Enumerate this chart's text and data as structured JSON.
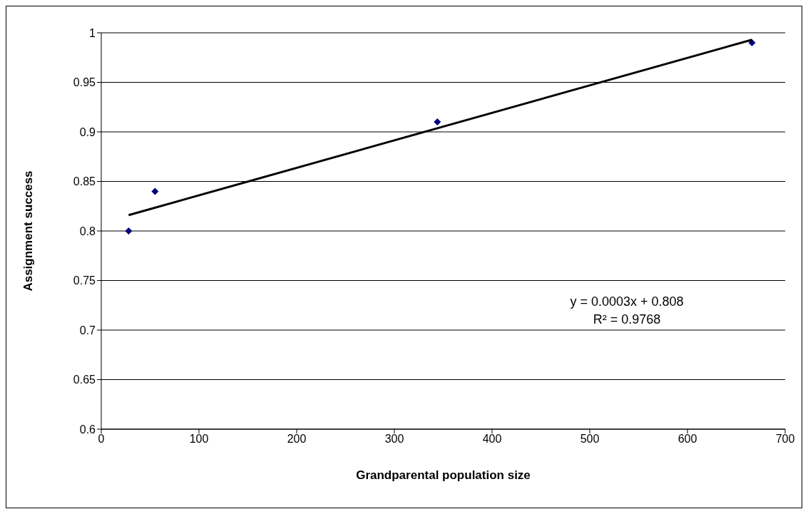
{
  "chart_data": {
    "type": "scatter",
    "xlabel": "Grandparental population size",
    "ylabel": "Assignment success",
    "marker": "diamond",
    "grid": "y",
    "xlim": [
      0,
      700
    ],
    "xticks": [
      0,
      100,
      200,
      300,
      400,
      500,
      600,
      700
    ],
    "ylim": [
      0.6,
      1
    ],
    "yticks": [
      0.6,
      0.65,
      0.7,
      0.75,
      0.8,
      0.85,
      0.9,
      0.95,
      1
    ],
    "series": [
      {
        "color": "#000080",
        "x": [
          28,
          55,
          344,
          666
        ],
        "values": [
          0.8,
          0.84,
          0.91,
          0.99
        ]
      },
      {
        "type": "line",
        "color": "#000000",
        "marker": "none",
        "x": [
          28,
          666
        ],
        "values": [
          0.816,
          0.993
        ]
      }
    ],
    "annotations": [
      "y = 0.0003x + 0.808",
      "R² = 0.9768"
    ]
  }
}
